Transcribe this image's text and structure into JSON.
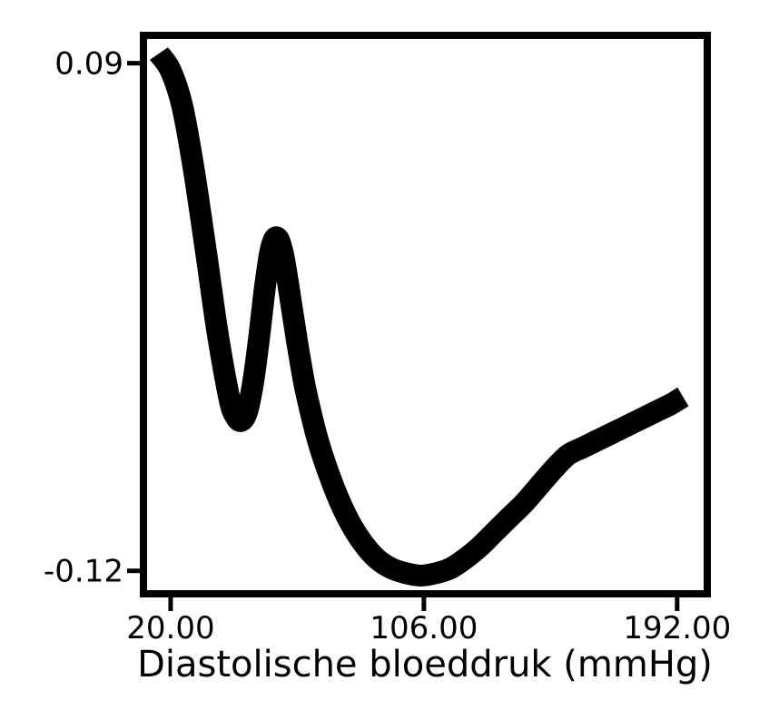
{
  "chart_data": {
    "type": "line",
    "title": "",
    "xlabel": "Diastolische bloeddruk (mmHg)",
    "ylabel": "",
    "xlim": [
      12,
      201
    ],
    "ylim": [
      -0.128,
      0.1
    ],
    "x_ticks": [
      {
        "value": 20,
        "label": "20.00"
      },
      {
        "value": 106,
        "label": "106.00"
      },
      {
        "value": 192,
        "label": "192.00"
      }
    ],
    "y_ticks": [
      {
        "value": 0.09,
        "label": "0.09"
      },
      {
        "value": -0.12,
        "label": "-0.12"
      }
    ],
    "grid": false,
    "series": [
      {
        "color": "#000000",
        "x": [
          16,
          20,
          24,
          28,
          32,
          36,
          40,
          42,
          44,
          46,
          48,
          50,
          52,
          54,
          56,
          58,
          60,
          62,
          64,
          66,
          70,
          75,
          80,
          85,
          90,
          95,
          100,
          105,
          110,
          115,
          120,
          125,
          130,
          135,
          140,
          145,
          150,
          155,
          160,
          165,
          170,
          175,
          180,
          185,
          190,
          194
        ],
        "y": [
          0.094,
          0.087,
          0.072,
          0.045,
          0.012,
          -0.022,
          -0.049,
          -0.056,
          -0.058,
          -0.054,
          -0.042,
          -0.024,
          -0.003,
          0.013,
          0.018,
          0.012,
          -0.002,
          -0.018,
          -0.033,
          -0.046,
          -0.066,
          -0.084,
          -0.098,
          -0.108,
          -0.115,
          -0.119,
          -0.121,
          -0.122,
          -0.121,
          -0.119,
          -0.115,
          -0.11,
          -0.104,
          -0.098,
          -0.092,
          -0.085,
          -0.078,
          -0.072,
          -0.069,
          -0.066,
          -0.063,
          -0.06,
          -0.057,
          -0.054,
          -0.051,
          -0.048
        ]
      }
    ]
  }
}
